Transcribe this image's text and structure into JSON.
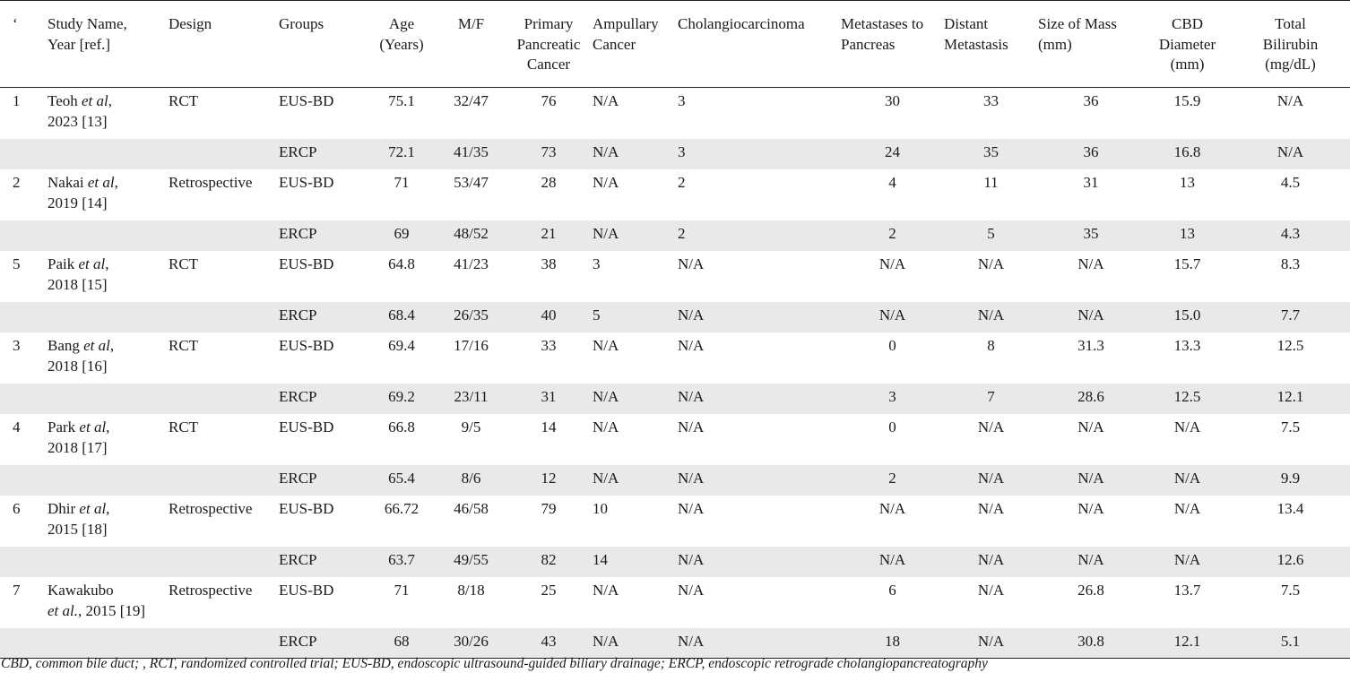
{
  "table": {
    "headers": [
      "‘",
      "Study Name, Year [ref.]",
      "Design",
      "Groups",
      "Age (Years)",
      "M/F",
      "Primary Pancreatic Cancer",
      "Ampullary Cancer",
      "Cholangiocarcinoma",
      "Metastases to Pancreas",
      "Distant Metastasis",
      "Size of Mass (mm)",
      "CBD Diameter (mm)",
      "Total Bilirubin (mg/dL)"
    ],
    "rows": [
      {
        "num": "1",
        "study_name": "Teoh",
        "etal": "et al",
        "study_year": "2023 [13]",
        "design": "RCT",
        "group": "EUS-BD",
        "age": "75.1",
        "mf": "32/47",
        "ppc": "76",
        "amp": "N/A",
        "chol": "3",
        "meta": "30",
        "dist": "33",
        "size": "36",
        "cbd": "15.9",
        "bili": "N/A"
      },
      {
        "num": "",
        "study_name": "",
        "etal": "",
        "study_year": "",
        "design": "",
        "group": "ERCP",
        "age": "72.1",
        "mf": "41/35",
        "ppc": "73",
        "amp": "N/A",
        "chol": "3",
        "meta": "24",
        "dist": "35",
        "size": "36",
        "cbd": "16.8",
        "bili": "N/A"
      },
      {
        "num": "2",
        "study_name": "Nakai",
        "etal": "et al",
        "study_year": "2019 [14]",
        "design": "Retrospective",
        "group": "EUS-BD",
        "age": "71",
        "mf": "53/47",
        "ppc": "28",
        "amp": "N/A",
        "chol": "2",
        "meta": "4",
        "dist": "11",
        "size": "31",
        "cbd": "13",
        "bili": "4.5"
      },
      {
        "num": "",
        "study_name": "",
        "etal": "",
        "study_year": "",
        "design": "",
        "group": "ERCP",
        "age": "69",
        "mf": "48/52",
        "ppc": "21",
        "amp": "N/A",
        "chol": "2",
        "meta": "2",
        "dist": "5",
        "size": "35",
        "cbd": "13",
        "bili": "4.3"
      },
      {
        "num": "5",
        "study_name": "Paik",
        "etal": "et al",
        "study_year": "2018 [15]",
        "design": "RCT",
        "group": "EUS-BD",
        "age": "64.8",
        "mf": "41/23",
        "ppc": "38",
        "amp": "3",
        "chol": "N/A",
        "meta": "N/A",
        "dist": "N/A",
        "size": "N/A",
        "cbd": "15.7",
        "bili": "8.3"
      },
      {
        "num": "",
        "study_name": "",
        "etal": "",
        "study_year": "",
        "design": "",
        "group": "ERCP",
        "age": "68.4",
        "mf": "26/35",
        "ppc": "40",
        "amp": "5",
        "chol": "N/A",
        "meta": "N/A",
        "dist": "N/A",
        "size": "N/A",
        "cbd": "15.0",
        "bili": "7.7"
      },
      {
        "num": "3",
        "study_name": "Bang",
        "etal": "et al",
        "study_year": "2018 [16]",
        "design": "RCT",
        "group": "EUS-BD",
        "age": "69.4",
        "mf": "17/16",
        "ppc": "33",
        "amp": "N/A",
        "chol": "N/A",
        "meta": "0",
        "dist": "8",
        "size": "31.3",
        "cbd": "13.3",
        "bili": "12.5"
      },
      {
        "num": "",
        "study_name": "",
        "etal": "",
        "study_year": "",
        "design": "",
        "group": "ERCP",
        "age": "69.2",
        "mf": "23/11",
        "ppc": "31",
        "amp": "N/A",
        "chol": "N/A",
        "meta": "3",
        "dist": "7",
        "size": "28.6",
        "cbd": "12.5",
        "bili": "12.1"
      },
      {
        "num": "4",
        "study_name": "Park",
        "etal": "et al",
        "study_year": "2018 [17]",
        "design": "RCT",
        "group": "EUS-BD",
        "age": "66.8",
        "mf": "9/5",
        "ppc": "14",
        "amp": "N/A",
        "chol": "N/A",
        "meta": "0",
        "dist": "N/A",
        "size": "N/A",
        "cbd": "N/A",
        "bili": "7.5"
      },
      {
        "num": "",
        "study_name": "",
        "etal": "",
        "study_year": "",
        "design": "",
        "group": "ERCP",
        "age": "65.4",
        "mf": "8/6",
        "ppc": "12",
        "amp": "N/A",
        "chol": "N/A",
        "meta": "2",
        "dist": "N/A",
        "size": "N/A",
        "cbd": "N/A",
        "bili": "9.9"
      },
      {
        "num": "6",
        "study_name": "Dhir",
        "etal": "et al",
        "study_year": "2015 [18]",
        "design": "Retrospective",
        "group": "EUS-BD",
        "age": "66.72",
        "mf": "46/58",
        "ppc": "79",
        "amp": "10",
        "chol": "N/A",
        "meta": "N/A",
        "dist": "N/A",
        "size": "N/A",
        "cbd": "N/A",
        "bili": "13.4"
      },
      {
        "num": "",
        "study_name": "",
        "etal": "",
        "study_year": "",
        "design": "",
        "group": "ERCP",
        "age": "63.7",
        "mf": "49/55",
        "ppc": "82",
        "amp": "14",
        "chol": "N/A",
        "meta": "N/A",
        "dist": "N/A",
        "size": "N/A",
        "cbd": "N/A",
        "bili": "12.6"
      },
      {
        "num": "7",
        "study_name": "Kawakubo",
        "etal": "et al.",
        "study_year": "2015 [19]",
        "design": "Retrospective",
        "group": "EUS-BD",
        "age": "71",
        "mf": "8/18",
        "ppc": "25",
        "amp": "N/A",
        "chol": "N/A",
        "meta": "6",
        "dist": "N/A",
        "size": "26.8",
        "cbd": "13.7",
        "bili": "7.5"
      },
      {
        "num": "",
        "study_name": "",
        "etal": "",
        "study_year": "",
        "design": "",
        "group": "ERCP",
        "age": "68",
        "mf": "30/26",
        "ppc": "43",
        "amp": "N/A",
        "chol": "N/A",
        "meta": "18",
        "dist": "N/A",
        "size": "30.8",
        "cbd": "12.1",
        "bili": "5.1"
      }
    ]
  },
  "caption": "CBD, common bile duct; , RCT, randomized controlled trial; EUS-BD, endoscopic ultrasound-guided biliary drainage; ERCP, endoscopic retrograde cholangiopancreatography"
}
